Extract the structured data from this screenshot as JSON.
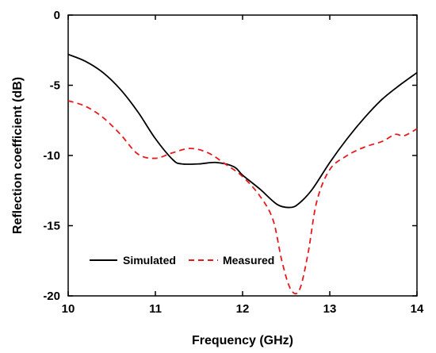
{
  "chart_data": {
    "type": "line",
    "title": "",
    "xlabel": "Frequency (GHz)",
    "ylabel": "Reflection coefficient (dB)",
    "xlim": [
      10,
      14
    ],
    "ylim": [
      -20,
      0
    ],
    "x_ticks": [
      10,
      11,
      12,
      13,
      14
    ],
    "y_ticks": [
      0,
      -5,
      -10,
      -15,
      -20
    ],
    "x_tick_labels": [
      "10",
      "11",
      "12",
      "13",
      "14"
    ],
    "y_tick_labels": [
      "0",
      "-5",
      "-10",
      "-15",
      "-20"
    ],
    "grid": false,
    "legend_position": "bottom-left",
    "series": [
      {
        "name": "Simulated",
        "color": "#000000",
        "style": "solid",
        "points": [
          [
            10.0,
            -2.8
          ],
          [
            10.2,
            -3.3
          ],
          [
            10.4,
            -4.1
          ],
          [
            10.6,
            -5.3
          ],
          [
            10.8,
            -6.9
          ],
          [
            11.0,
            -8.8
          ],
          [
            11.2,
            -10.3
          ],
          [
            11.3,
            -10.6
          ],
          [
            11.5,
            -10.6
          ],
          [
            11.7,
            -10.5
          ],
          [
            11.9,
            -10.8
          ],
          [
            12.0,
            -11.4
          ],
          [
            12.2,
            -12.4
          ],
          [
            12.4,
            -13.5
          ],
          [
            12.55,
            -13.7
          ],
          [
            12.65,
            -13.4
          ],
          [
            12.8,
            -12.4
          ],
          [
            13.0,
            -10.5
          ],
          [
            13.2,
            -8.8
          ],
          [
            13.4,
            -7.3
          ],
          [
            13.6,
            -6.0
          ],
          [
            13.8,
            -5.0
          ],
          [
            14.0,
            -4.1
          ]
        ]
      },
      {
        "name": "Measured",
        "color": "#e8191c",
        "style": "dashed",
        "points": [
          [
            10.0,
            -6.1
          ],
          [
            10.2,
            -6.5
          ],
          [
            10.4,
            -7.3
          ],
          [
            10.6,
            -8.5
          ],
          [
            10.8,
            -9.9
          ],
          [
            11.0,
            -10.2
          ],
          [
            11.2,
            -9.8
          ],
          [
            11.4,
            -9.5
          ],
          [
            11.6,
            -9.8
          ],
          [
            11.8,
            -10.6
          ],
          [
            12.0,
            -11.5
          ],
          [
            12.2,
            -12.9
          ],
          [
            12.35,
            -14.6
          ],
          [
            12.45,
            -17.5
          ],
          [
            12.55,
            -19.5
          ],
          [
            12.65,
            -19.6
          ],
          [
            12.75,
            -17.0
          ],
          [
            12.85,
            -13.3
          ],
          [
            13.0,
            -11.0
          ],
          [
            13.2,
            -10.0
          ],
          [
            13.4,
            -9.4
          ],
          [
            13.6,
            -9.0
          ],
          [
            13.75,
            -8.5
          ],
          [
            13.85,
            -8.6
          ],
          [
            14.0,
            -8.1
          ]
        ]
      }
    ]
  }
}
